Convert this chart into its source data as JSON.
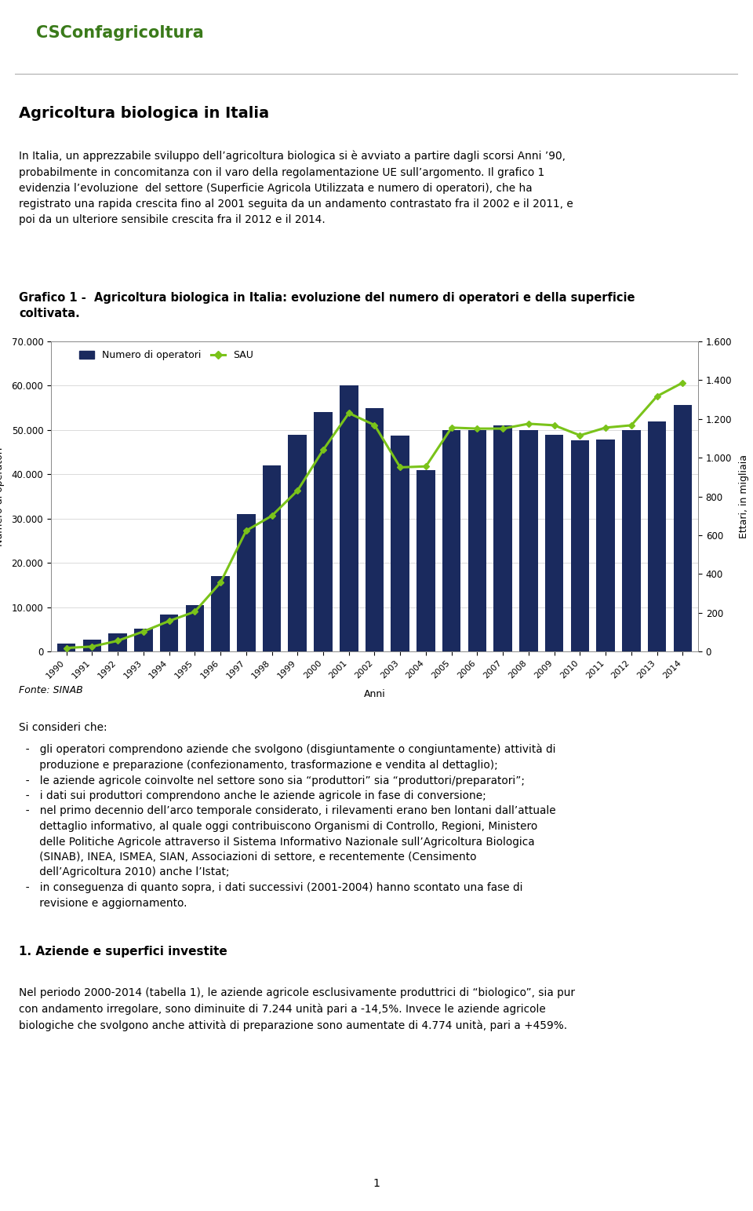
{
  "years": [
    1990,
    1991,
    1992,
    1993,
    1994,
    1995,
    1996,
    1997,
    1998,
    1999,
    2000,
    2001,
    2002,
    2003,
    2004,
    2005,
    2006,
    2007,
    2008,
    2009,
    2010,
    2011,
    2012,
    2013,
    2014
  ],
  "operatori": [
    1796,
    2688,
    4023,
    5199,
    8278,
    10482,
    17000,
    31000,
    42000,
    49000,
    54000,
    60000,
    55000,
    48800,
    41000,
    50000,
    50000,
    51000,
    50000,
    49000,
    47700,
    47800,
    50000,
    52000,
    55700
  ],
  "SAU": [
    18,
    25,
    55,
    103,
    157,
    205,
    355,
    623,
    700,
    830,
    1040,
    1230,
    1168,
    950,
    955,
    1155,
    1150,
    1150,
    1175,
    1167,
    1115,
    1155,
    1167,
    1317,
    1387
  ],
  "bar_color": "#1a2a5e",
  "line_color": "#7ac31a",
  "left_yaxis_label": "Numero di operatori",
  "right_yaxis_label": "Ettari, in migliaia",
  "xlabel": "Anni",
  "left_ylim": [
    0,
    70000
  ],
  "right_ylim": [
    0,
    1600
  ],
  "left_yticks": [
    0,
    10000,
    20000,
    30000,
    40000,
    50000,
    60000,
    70000
  ],
  "right_yticks": [
    0,
    200,
    400,
    600,
    800,
    1000,
    1200,
    1400,
    1600
  ],
  "legend_bar": "Numero di operatori",
  "legend_line": "SAU",
  "header_text": "Agricoltura biologica in Italia",
  "fonte_text": "Fonte: SINAB",
  "section_title": "1. Aziende e superfici investite",
  "page_num": "1",
  "fig_width": 9.6,
  "fig_height": 15.43,
  "fig_dpi": 100
}
